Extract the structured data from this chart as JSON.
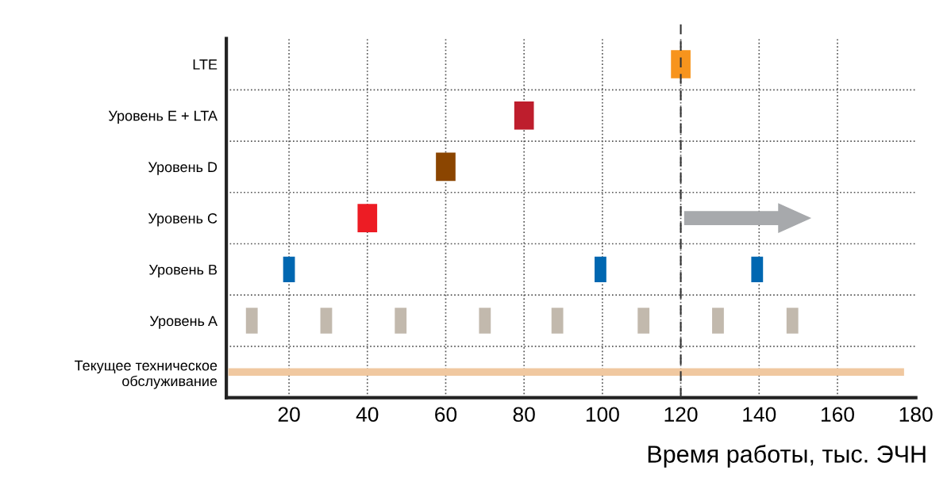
{
  "chart_data": {
    "type": "bar",
    "orientation": "horizontal",
    "xlabel": "Время работы, тыс. ЭЧН",
    "categories": [
      "LTE",
      "Уровень E + LTA",
      "Уровень D",
      "Уровень C",
      "Уровень B",
      "Уровень A",
      "Текущее техническое\nобслуживание"
    ],
    "series": [
      {
        "base": [
          117.5,
          77.5,
          57.5,
          37.5,
          18.5,
          9,
          4.5
        ],
        "values": [
          5,
          5,
          5,
          5,
          3,
          3,
          172.5
        ],
        "colors": [
          "#f7941d",
          "#be1e2d",
          "#8b4500",
          "#ed1c24",
          "#0067b1",
          "#c2b9ad",
          "#f0c8a0"
        ]
      },
      {
        "base": [
          null,
          null,
          null,
          null,
          98,
          28,
          null
        ],
        "values": [
          null,
          null,
          null,
          null,
          3,
          3,
          null
        ],
        "colors": [
          null,
          null,
          null,
          null,
          "#0067b1",
          "#c2b9ad",
          null
        ]
      },
      {
        "base": [
          null,
          null,
          null,
          null,
          138,
          47,
          null
        ],
        "values": [
          null,
          null,
          null,
          null,
          3,
          3,
          null
        ],
        "colors": [
          null,
          null,
          null,
          null,
          "#0067b1",
          "#c2b9ad",
          null
        ]
      },
      {
        "base": [
          null,
          null,
          null,
          null,
          null,
          68.5,
          null
        ],
        "values": [
          null,
          null,
          null,
          null,
          null,
          3,
          null
        ],
        "colors": [
          null,
          null,
          null,
          null,
          null,
          "#c2b9ad",
          null
        ]
      },
      {
        "base": [
          null,
          null,
          null,
          null,
          null,
          87,
          null
        ],
        "values": [
          null,
          null,
          null,
          null,
          null,
          3,
          null
        ],
        "colors": [
          null,
          null,
          null,
          null,
          null,
          "#c2b9ad",
          null
        ]
      },
      {
        "base": [
          null,
          null,
          null,
          null,
          null,
          109,
          null
        ],
        "values": [
          null,
          null,
          null,
          null,
          null,
          3,
          null
        ],
        "colors": [
          null,
          null,
          null,
          null,
          null,
          "#c2b9ad",
          null
        ]
      },
      {
        "base": [
          null,
          null,
          null,
          null,
          null,
          128,
          null
        ],
        "values": [
          null,
          null,
          null,
          null,
          null,
          3,
          null
        ],
        "colors": [
          null,
          null,
          null,
          null,
          null,
          "#c2b9ad",
          null
        ]
      },
      {
        "base": [
          null,
          null,
          null,
          null,
          null,
          147,
          null
        ],
        "values": [
          null,
          null,
          null,
          null,
          null,
          3,
          null
        ],
        "colors": [
          null,
          null,
          null,
          null,
          null,
          "#c2b9ad",
          null
        ]
      }
    ],
    "xlim": [
      4,
      180
    ],
    "xticks": [
      20,
      40,
      60,
      80,
      100,
      120,
      140,
      160,
      180
    ],
    "ref_lines": [
      {
        "axis": "x",
        "value": 120,
        "color": "#333333",
        "line_style": "dashed"
      }
    ],
    "grid": true,
    "legend": false
  }
}
